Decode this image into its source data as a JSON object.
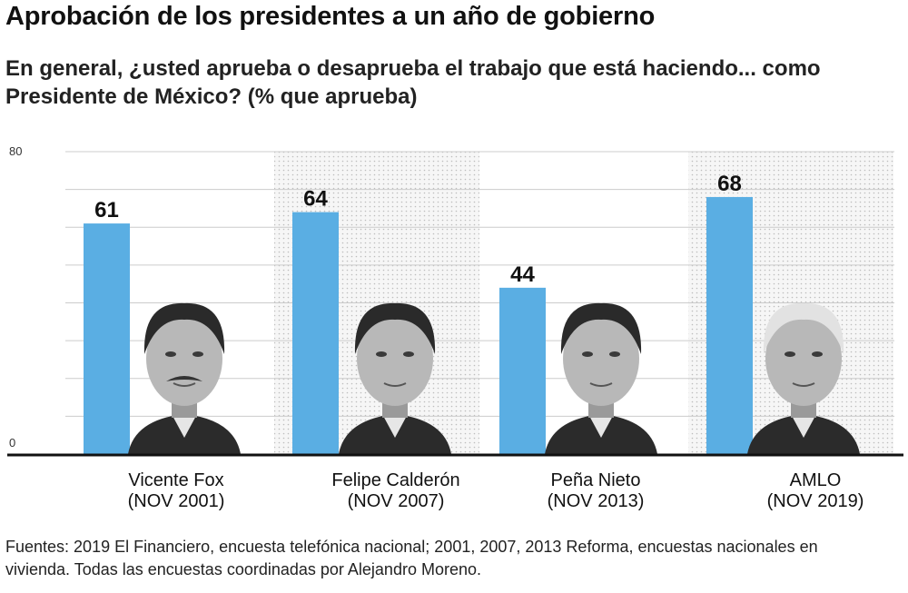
{
  "title": "Aprobación de los presidentes a un año de gobierno",
  "subtitle": "En general, ¿usted aprueba o desaprueba el trabajo que está haciendo... como Presidente de México?  (% que aprueba)",
  "footer": "Fuentes: 2019 El Financiero, encuesta telefónica nacional; 2001, 2007, 2013 Reforma, encuestas nacionales en vivienda. Todas las encuestas coordinadas por Alejandro Moreno.",
  "colors": {
    "bar": "#5aaee3",
    "grid": "#cccccc",
    "baseline": "#111111",
    "shade": "#ededed"
  },
  "chart_data": {
    "type": "bar",
    "title": "",
    "xlabel": "",
    "ylabel": "",
    "ylim": [
      0,
      80
    ],
    "yticks": [
      0,
      80
    ],
    "grid": true,
    "categories": [
      {
        "name": "Vicente Fox",
        "date": "(NOV 2001)"
      },
      {
        "name": "Felipe Calderón",
        "date": "(NOV 2007)"
      },
      {
        "name": "Peña Nieto",
        "date": "(NOV 2013)"
      },
      {
        "name": "AMLO",
        "date": "(NOV 2019)"
      }
    ],
    "values": [
      61,
      64,
      44,
      68
    ],
    "shaded_columns": [
      false,
      true,
      false,
      true
    ],
    "images": [
      "portrait-vicente-fox",
      "portrait-felipe-calderon",
      "portrait-pena-nieto",
      "portrait-amlo"
    ]
  }
}
